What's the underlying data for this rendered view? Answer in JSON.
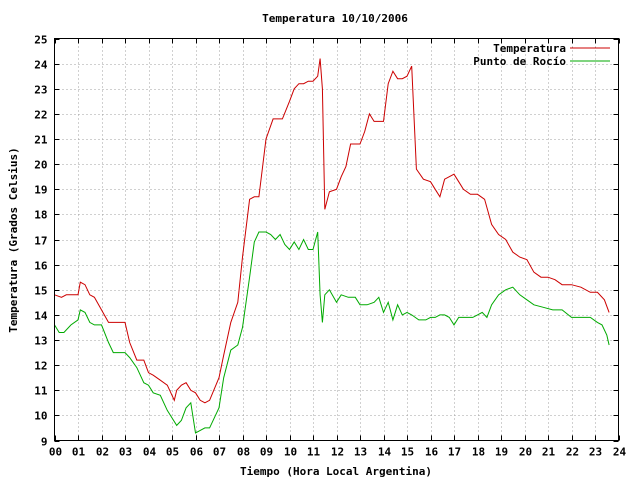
{
  "chart_data": {
    "type": "line",
    "title": "Temperatura 10/10/2006",
    "xlabel": "Tiempo (Hora Local Argentina)",
    "ylabel": "Temperatura (Grados Celsius)",
    "xlim": [
      0,
      24
    ],
    "ylim": [
      9,
      25
    ],
    "grid": true,
    "legend_position": "top-right",
    "x_tick_labels": [
      "00",
      "01",
      "02",
      "03",
      "04",
      "05",
      "06",
      "07",
      "08",
      "09",
      "10",
      "11",
      "12",
      "13",
      "14",
      "15",
      "16",
      "17",
      "18",
      "19",
      "20",
      "21",
      "22",
      "23",
      "24"
    ],
    "y_tick_labels": [
      "9",
      "10",
      "11",
      "12",
      "13",
      "14",
      "15",
      "16",
      "17",
      "18",
      "19",
      "20",
      "21",
      "22",
      "23",
      "24",
      "25"
    ],
    "series": [
      {
        "name": "Temperatura",
        "color": "#cc0000",
        "x": [
          0,
          0.3,
          0.5,
          1.0,
          1.1,
          1.3,
          1.5,
          1.7,
          2.0,
          2.3,
          2.5,
          2.8,
          3.0,
          3.2,
          3.5,
          3.8,
          4.0,
          4.2,
          4.5,
          4.8,
          5.0,
          5.1,
          5.2,
          5.4,
          5.6,
          5.8,
          6.0,
          6.2,
          6.4,
          6.6,
          7.0,
          7.2,
          7.5,
          7.8,
          8.0,
          8.3,
          8.5,
          8.7,
          9.0,
          9.3,
          9.5,
          9.7,
          10.0,
          10.2,
          10.4,
          10.6,
          10.8,
          11.0,
          11.2,
          11.3,
          11.4,
          11.5,
          11.7,
          12.0,
          12.2,
          12.4,
          12.6,
          12.8,
          13.0,
          13.2,
          13.4,
          13.6,
          13.8,
          14.0,
          14.2,
          14.4,
          14.6,
          14.8,
          15.0,
          15.2,
          15.4,
          15.7,
          16.0,
          16.2,
          16.4,
          16.6,
          16.8,
          17.0,
          17.2,
          17.4,
          17.7,
          18.0,
          18.3,
          18.6,
          18.9,
          19.2,
          19.5,
          19.8,
          20.1,
          20.4,
          20.7,
          21.0,
          21.3,
          21.6,
          22.0,
          22.4,
          22.8,
          23.1,
          23.4,
          23.6
        ],
        "values": [
          14.8,
          14.7,
          14.8,
          14.8,
          15.3,
          15.2,
          14.8,
          14.7,
          14.2,
          13.7,
          13.7,
          13.7,
          13.7,
          12.9,
          12.2,
          12.2,
          11.7,
          11.6,
          11.4,
          11.2,
          10.8,
          10.6,
          11.0,
          11.2,
          11.3,
          11.0,
          10.9,
          10.6,
          10.5,
          10.6,
          11.5,
          12.4,
          13.7,
          14.5,
          16.3,
          18.6,
          18.7,
          18.7,
          21.0,
          21.8,
          21.8,
          21.8,
          22.5,
          23.0,
          23.2,
          23.2,
          23.3,
          23.3,
          23.5,
          24.2,
          23.0,
          18.2,
          18.9,
          19.0,
          19.5,
          19.9,
          20.8,
          20.8,
          20.8,
          21.3,
          22.0,
          21.7,
          21.7,
          21.7,
          23.2,
          23.7,
          23.4,
          23.4,
          23.5,
          23.9,
          19.8,
          19.4,
          19.3,
          19.0,
          18.7,
          19.4,
          19.5,
          19.6,
          19.3,
          19.0,
          18.8,
          18.8,
          18.6,
          17.6,
          17.2,
          17.0,
          16.5,
          16.3,
          16.2,
          15.7,
          15.5,
          15.5,
          15.4,
          15.2,
          15.2,
          15.1,
          14.9,
          14.9,
          14.6,
          14.1
        ]
      },
      {
        "name": "Punto de Rocío",
        "color": "#00aa00",
        "x": [
          0,
          0.2,
          0.4,
          0.7,
          1.0,
          1.1,
          1.3,
          1.5,
          1.7,
          2.0,
          2.3,
          2.5,
          2.8,
          3.0,
          3.2,
          3.5,
          3.8,
          4.0,
          4.2,
          4.5,
          4.8,
          5.0,
          5.2,
          5.4,
          5.6,
          5.8,
          6.0,
          6.2,
          6.4,
          6.6,
          7.0,
          7.2,
          7.5,
          7.8,
          8.0,
          8.3,
          8.5,
          8.7,
          9.0,
          9.2,
          9.4,
          9.6,
          9.8,
          10.0,
          10.2,
          10.4,
          10.6,
          10.8,
          11.0,
          11.2,
          11.3,
          11.4,
          11.5,
          11.7,
          12.0,
          12.2,
          12.5,
          12.8,
          13.0,
          13.3,
          13.6,
          13.8,
          14.0,
          14.2,
          14.4,
          14.6,
          14.8,
          15.0,
          15.2,
          15.5,
          15.8,
          16.0,
          16.2,
          16.4,
          16.6,
          16.8,
          17.0,
          17.2,
          17.5,
          17.8,
          18.0,
          18.2,
          18.4,
          18.6,
          18.9,
          19.2,
          19.5,
          19.8,
          20.1,
          20.4,
          20.8,
          21.2,
          21.6,
          22.0,
          22.4,
          22.8,
          23.1,
          23.3,
          23.5,
          23.6
        ],
        "values": [
          13.6,
          13.3,
          13.3,
          13.6,
          13.8,
          14.2,
          14.1,
          13.7,
          13.6,
          13.6,
          12.9,
          12.5,
          12.5,
          12.5,
          12.3,
          11.9,
          11.3,
          11.2,
          10.9,
          10.8,
          10.2,
          9.9,
          9.6,
          9.8,
          10.3,
          10.5,
          9.3,
          9.4,
          9.5,
          9.5,
          10.3,
          11.5,
          12.6,
          12.8,
          13.5,
          15.5,
          16.9,
          17.3,
          17.3,
          17.2,
          17.0,
          17.2,
          16.8,
          16.6,
          16.9,
          16.6,
          17.0,
          16.6,
          16.6,
          17.3,
          14.8,
          13.7,
          14.8,
          15.0,
          14.5,
          14.8,
          14.7,
          14.7,
          14.4,
          14.4,
          14.5,
          14.7,
          14.1,
          14.5,
          13.8,
          14.4,
          14.0,
          14.1,
          14.0,
          13.8,
          13.8,
          13.9,
          13.9,
          14.0,
          14.0,
          13.9,
          13.6,
          13.9,
          13.9,
          13.9,
          14.0,
          14.1,
          13.9,
          14.4,
          14.8,
          15.0,
          15.1,
          14.8,
          14.6,
          14.4,
          14.3,
          14.2,
          14.2,
          13.9,
          13.9,
          13.9,
          13.7,
          13.6,
          13.2,
          12.8
        ]
      }
    ]
  }
}
